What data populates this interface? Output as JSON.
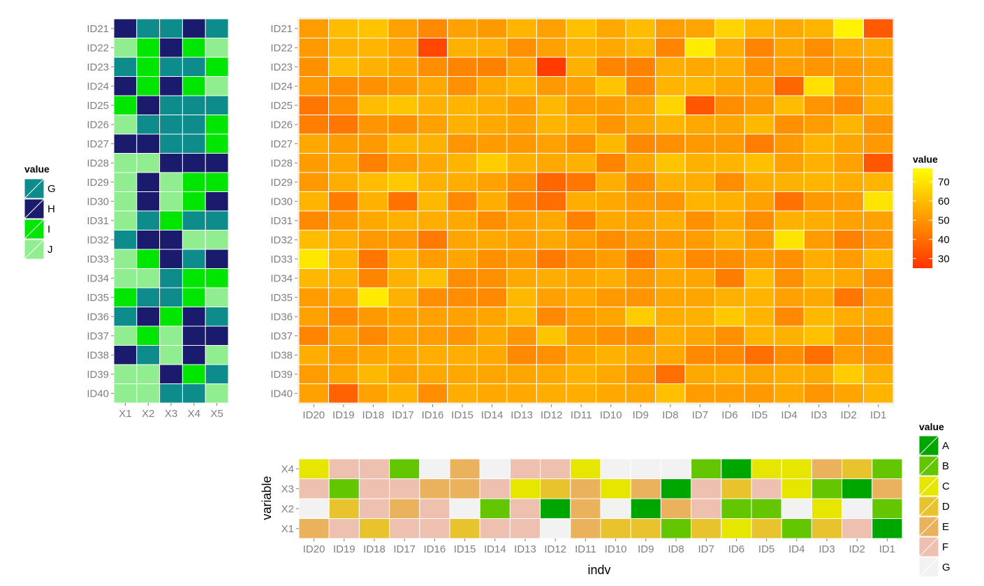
{
  "chart_data": [
    {
      "name": "left-heatmap",
      "type": "heatmap",
      "x_categories": [
        "X1",
        "X2",
        "X3",
        "X4",
        "X5"
      ],
      "y_categories": [
        "ID21",
        "ID22",
        "ID23",
        "ID24",
        "ID25",
        "ID26",
        "ID27",
        "ID28",
        "ID29",
        "ID30",
        "ID31",
        "ID32",
        "ID33",
        "ID34",
        "ID35",
        "ID36",
        "ID37",
        "ID38",
        "ID39",
        "ID40"
      ],
      "values": [
        [
          "H",
          "G",
          "G",
          "H",
          "G"
        ],
        [
          "J",
          "I",
          "H",
          "I",
          "J"
        ],
        [
          "G",
          "I",
          "G",
          "G",
          "I"
        ],
        [
          "H",
          "I",
          "H",
          "I",
          "J"
        ],
        [
          "I",
          "H",
          "G",
          "G",
          "G"
        ],
        [
          "J",
          "G",
          "G",
          "G",
          "I"
        ],
        [
          "H",
          "H",
          "G",
          "G",
          "I"
        ],
        [
          "J",
          "J",
          "H",
          "H",
          "H"
        ],
        [
          "J",
          "H",
          "J",
          "I",
          "I"
        ],
        [
          "J",
          "H",
          "J",
          "I",
          "H"
        ],
        [
          "J",
          "G",
          "I",
          "G",
          "G"
        ],
        [
          "G",
          "H",
          "H",
          "J",
          "J"
        ],
        [
          "J",
          "I",
          "H",
          "G",
          "H"
        ],
        [
          "J",
          "J",
          "G",
          "I",
          "I"
        ],
        [
          "I",
          "G",
          "G",
          "I",
          "J"
        ],
        [
          "G",
          "H",
          "I",
          "H",
          "G"
        ],
        [
          "J",
          "I",
          "J",
          "H",
          "H"
        ],
        [
          "H",
          "G",
          "J",
          "H",
          "J"
        ],
        [
          "J",
          "J",
          "H",
          "I",
          "G"
        ],
        [
          "J",
          "J",
          "G",
          "G",
          "J"
        ]
      ],
      "legend": {
        "title": "value",
        "levels": [
          "G",
          "H",
          "I",
          "J"
        ],
        "colors": {
          "G": "#0E8C8C",
          "H": "#1B1B6E",
          "I": "#00E600",
          "J": "#90EE90"
        }
      }
    },
    {
      "name": "main-heatmap",
      "type": "heatmap",
      "x_categories": [
        "ID20",
        "ID19",
        "ID18",
        "ID17",
        "ID16",
        "ID15",
        "ID14",
        "ID13",
        "ID12",
        "ID11",
        "ID10",
        "ID9",
        "ID8",
        "ID7",
        "ID6",
        "ID5",
        "ID4",
        "ID3",
        "ID2",
        "ID1"
      ],
      "y_categories": [
        "ID21",
        "ID22",
        "ID23",
        "ID24",
        "ID25",
        "ID26",
        "ID27",
        "ID28",
        "ID29",
        "ID30",
        "ID31",
        "ID32",
        "ID33",
        "ID34",
        "ID35",
        "ID36",
        "ID37",
        "ID38",
        "ID39",
        "ID40"
      ],
      "values": [
        [
          52,
          60,
          62,
          53,
          47,
          53,
          51,
          58,
          53,
          61,
          55,
          60,
          52,
          54,
          66,
          58,
          55,
          58,
          74,
          35
        ],
        [
          51,
          57,
          58,
          53,
          30,
          57,
          56,
          49,
          53,
          57,
          55,
          58,
          46,
          72,
          56,
          46,
          54,
          48,
          55,
          56
        ],
        [
          49,
          60,
          57,
          54,
          48,
          46,
          45,
          53,
          27,
          57,
          46,
          45,
          56,
          55,
          56,
          49,
          52,
          50,
          51,
          53
        ],
        [
          51,
          48,
          49,
          51,
          55,
          49,
          55,
          58,
          51,
          53,
          62,
          47,
          58,
          59,
          54,
          53,
          38,
          69,
          52,
          56
        ],
        [
          42,
          48,
          60,
          62,
          57,
          58,
          56,
          52,
          59,
          52,
          52,
          54,
          66,
          34,
          48,
          51,
          60,
          50,
          47,
          56
        ],
        [
          44,
          42,
          50,
          49,
          53,
          57,
          55,
          53,
          58,
          56,
          50,
          54,
          58,
          55,
          54,
          59,
          49,
          52,
          58,
          50
        ],
        [
          55,
          52,
          51,
          58,
          57,
          50,
          52,
          51,
          53,
          49,
          59,
          47,
          49,
          51,
          51,
          44,
          51,
          58,
          54,
          51
        ],
        [
          52,
          54,
          45,
          52,
          55,
          58,
          64,
          57,
          55,
          57,
          46,
          55,
          62,
          57,
          58,
          61,
          53,
          57,
          53,
          34
        ],
        [
          51,
          56,
          60,
          63,
          57,
          56,
          53,
          49,
          38,
          42,
          56,
          48,
          57,
          56,
          48,
          56,
          57,
          58,
          56,
          58
        ],
        [
          58,
          44,
          57,
          41,
          59,
          47,
          56,
          46,
          40,
          56,
          55,
          52,
          50,
          58,
          57,
          53,
          41,
          51,
          52,
          70
        ],
        [
          47,
          51,
          55,
          57,
          56,
          55,
          48,
          53,
          55,
          45,
          55,
          53,
          56,
          49,
          55,
          48,
          57,
          56,
          53,
          53
        ],
        [
          60,
          56,
          51,
          51,
          43,
          54,
          55,
          53,
          55,
          52,
          48,
          51,
          52,
          52,
          57,
          51,
          70,
          52,
          45,
          50
        ],
        [
          71,
          58,
          42,
          58,
          52,
          54,
          49,
          51,
          43,
          48,
          52,
          44,
          54,
          47,
          48,
          52,
          49,
          56,
          52,
          59
        ],
        [
          59,
          57,
          46,
          57,
          61,
          48,
          49,
          55,
          56,
          54,
          56,
          51,
          55,
          54,
          44,
          60,
          49,
          57,
          55,
          49
        ],
        [
          52,
          54,
          72,
          57,
          48,
          48,
          47,
          59,
          53,
          55,
          51,
          50,
          54,
          54,
          57,
          58,
          53,
          55,
          42,
          52
        ],
        [
          53,
          47,
          51,
          53,
          53,
          53,
          54,
          59,
          47,
          52,
          54,
          64,
          56,
          57,
          63,
          58,
          47,
          59,
          56,
          55
        ],
        [
          46,
          53,
          47,
          53,
          52,
          50,
          55,
          50,
          62,
          51,
          49,
          48,
          56,
          54,
          49,
          58,
          57,
          61,
          51,
          50
        ],
        [
          56,
          52,
          54,
          55,
          56,
          56,
          55,
          47,
          49,
          54,
          57,
          55,
          55,
          47,
          47,
          40,
          48,
          40,
          52,
          50
        ],
        [
          52,
          54,
          59,
          53,
          55,
          55,
          54,
          54,
          55,
          57,
          55,
          51,
          40,
          55,
          56,
          54,
          56,
          55,
          64,
          57
        ],
        [
          53,
          37,
          53,
          57,
          48,
          56,
          55,
          55,
          56,
          56,
          55,
          54,
          61,
          52,
          52,
          51,
          55,
          50,
          54,
          58
        ]
      ],
      "legend": {
        "title": "value",
        "range": [
          25,
          77
        ],
        "breaks": [
          70,
          60,
          50,
          40,
          30
        ],
        "low_color": "#FF3300",
        "high_color": "#FFFF00"
      }
    },
    {
      "name": "bottom-heatmap",
      "type": "heatmap",
      "x_categories": [
        "ID20",
        "ID19",
        "ID18",
        "ID17",
        "ID16",
        "ID15",
        "ID14",
        "ID13",
        "ID12",
        "ID11",
        "ID10",
        "ID9",
        "ID8",
        "ID7",
        "ID6",
        "ID5",
        "ID4",
        "ID3",
        "ID2",
        "ID1"
      ],
      "y_categories": [
        "X4",
        "X3",
        "X2",
        "X1"
      ],
      "values": [
        [
          "C",
          "F",
          "F",
          "B",
          "G",
          "E",
          "G",
          "F",
          "F",
          "C",
          "G",
          "G",
          "G",
          "B",
          "A",
          "C",
          "C",
          "E",
          "D",
          "B"
        ],
        [
          "F",
          "B",
          "F",
          "F",
          "E",
          "E",
          "F",
          "C",
          "D",
          "E",
          "C",
          "E",
          "A",
          "F",
          "D",
          "F",
          "C",
          "B",
          "A",
          "E"
        ],
        [
          "G",
          "D",
          "F",
          "E",
          "F",
          "G",
          "B",
          "F",
          "A",
          "E",
          "G",
          "A",
          "E",
          "F",
          "B",
          "B",
          "G",
          "C",
          "G",
          "B"
        ],
        [
          "E",
          "F",
          "D",
          "F",
          "F",
          "D",
          "F",
          "F",
          "G",
          "E",
          "D",
          "D",
          "B",
          "D",
          "C",
          "D",
          "B",
          "D",
          "F",
          "A"
        ]
      ],
      "xlabel": "indv",
      "ylabel": "variable",
      "legend": {
        "title": "value",
        "levels": [
          "A",
          "B",
          "C",
          "D",
          "E",
          "F",
          "G"
        ],
        "colors": {
          "A": "#00A600",
          "B": "#63C600",
          "C": "#E6E600",
          "D": "#E8C32E",
          "E": "#EBB25E",
          "F": "#EDC0B0",
          "G": "#F2F2F2"
        }
      }
    }
  ]
}
